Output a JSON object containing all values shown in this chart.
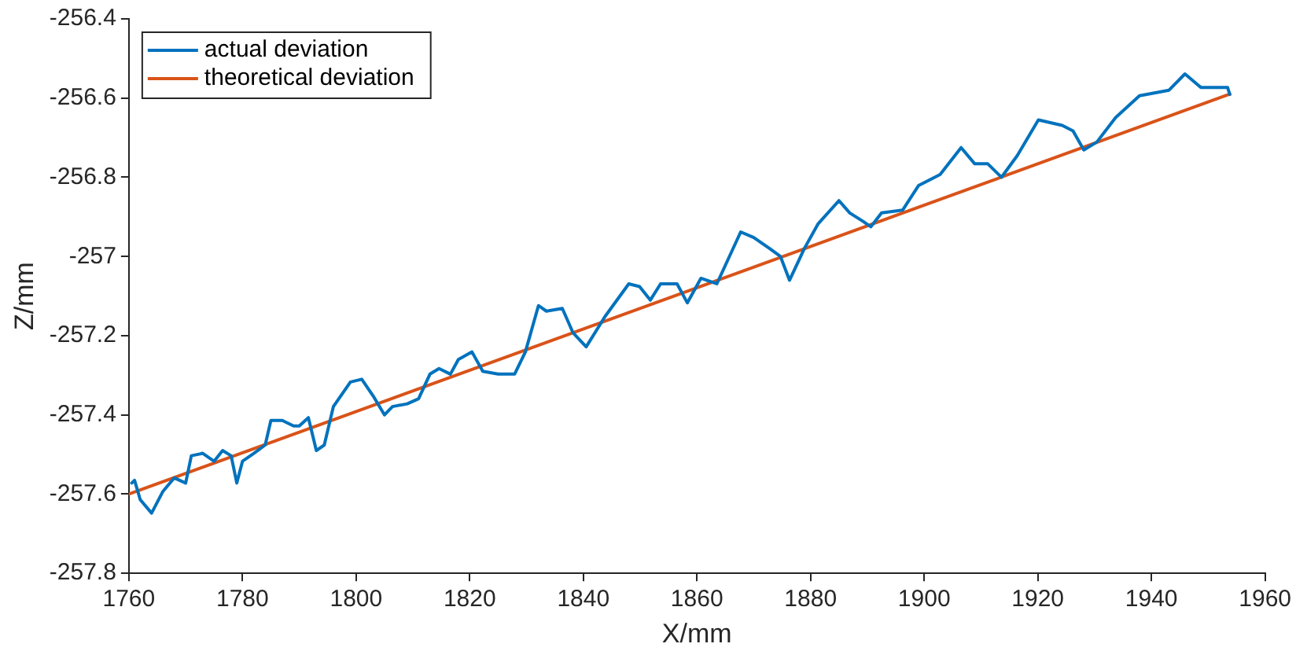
{
  "chart_data": {
    "type": "line",
    "xlabel": "X/mm",
    "ylabel": "Z/mm",
    "xlim": [
      1760,
      1960
    ],
    "xticks": [
      1760,
      1780,
      1800,
      1820,
      1840,
      1860,
      1880,
      1900,
      1920,
      1940,
      1960
    ],
    "ylim": [
      -257.8,
      -256.4
    ],
    "yticks": [
      -257.8,
      -257.6,
      -257.4,
      -257.2,
      -257,
      -256.8,
      -256.6,
      -256.4
    ],
    "grid": false,
    "legend": "top left",
    "marker": "none",
    "line_style": "solid",
    "series": [
      {
        "name": "actual deviation",
        "color": "#0072bd",
        "x": [
          1760.5,
          1761,
          1762,
          1764,
          1766,
          1768,
          1770,
          1771,
          1773,
          1775,
          1776.5,
          1778,
          1779,
          1780,
          1782,
          1784,
          1785,
          1787,
          1789,
          1790,
          1791.6,
          1793,
          1794.4,
          1796,
          1799,
          1801,
          1803,
          1805,
          1806.4,
          1809,
          1811,
          1813,
          1814.6,
          1816.6,
          1818,
          1820.4,
          1822.3,
          1825,
          1827.9,
          1829.8,
          1832.1,
          1833.5,
          1836.3,
          1838.2,
          1840.5,
          1843.8,
          1848,
          1849.9,
          1851.8,
          1853.6,
          1856.5,
          1858.3,
          1860.7,
          1863.5,
          1867.7,
          1870,
          1872.8,
          1874.7,
          1876.3,
          1878.9,
          1881.3,
          1885,
          1886.9,
          1889.2,
          1890.6,
          1892.5,
          1896.2,
          1899,
          1902.8,
          1906.5,
          1908.9,
          1911.2,
          1913.6,
          1916.4,
          1920.1,
          1924.3,
          1926.2,
          1928.1,
          1930.4,
          1933.7,
          1937.9,
          1943.1,
          1945.9,
          1948.7,
          1953.4,
          1953.8
        ],
        "values": [
          -257.572,
          -257.565,
          -257.614,
          -257.648,
          -257.593,
          -257.559,
          -257.572,
          -257.503,
          -257.497,
          -257.517,
          -257.49,
          -257.503,
          -257.572,
          -257.517,
          -257.497,
          -257.476,
          -257.414,
          -257.414,
          -257.428,
          -257.428,
          -257.407,
          -257.49,
          -257.476,
          -257.379,
          -257.317,
          -257.31,
          -257.352,
          -257.4,
          -257.379,
          -257.372,
          -257.359,
          -257.297,
          -257.283,
          -257.297,
          -257.26,
          -257.241,
          -257.29,
          -257.297,
          -257.297,
          -257.241,
          -257.124,
          -257.138,
          -257.131,
          -257.193,
          -257.228,
          -257.152,
          -257.069,
          -257.076,
          -257.11,
          -257.069,
          -257.069,
          -257.117,
          -257.055,
          -257.069,
          -256.938,
          -256.952,
          -256.98,
          -257,
          -257.06,
          -256.98,
          -256.918,
          -256.859,
          -256.89,
          -256.911,
          -256.925,
          -256.89,
          -256.883,
          -256.821,
          -256.793,
          -256.725,
          -256.766,
          -256.766,
          -256.8,
          -256.745,
          -256.655,
          -256.669,
          -256.683,
          -256.731,
          -256.711,
          -256.649,
          -256.594,
          -256.58,
          -256.539,
          -256.573,
          -256.573,
          -256.591
        ]
      },
      {
        "name": "theoretical deviation",
        "color": "#d95319",
        "x": [
          1760,
          1953.8
        ],
        "values": [
          -257.6,
          -256.59
        ]
      }
    ]
  }
}
